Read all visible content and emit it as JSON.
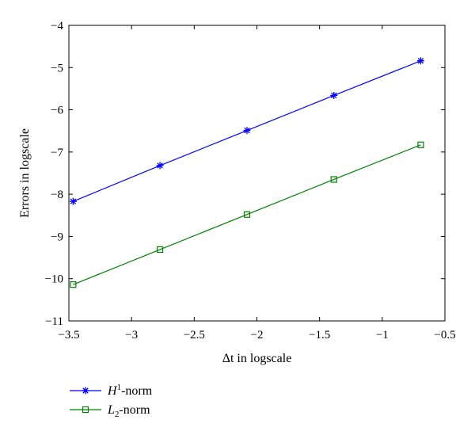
{
  "chart_data": {
    "type": "line",
    "title": "",
    "xlabel": "Δt in logscale",
    "ylabel": "Errors in logscale",
    "xlim": [
      -3.5,
      -0.5
    ],
    "ylim": [
      -11,
      -4
    ],
    "xticks": [
      -3.5,
      -3,
      -2.5,
      -2,
      -1.5,
      -1,
      -0.5
    ],
    "yticks": [
      -11,
      -10,
      -9,
      -8,
      -7,
      -6,
      -5,
      -4
    ],
    "xtick_labels": [
      "−3.5",
      "−3",
      "−2.5",
      "−2",
      "−1.5",
      "−1",
      "−0.5"
    ],
    "ytick_labels": [
      "−11",
      "−10",
      "−9",
      "−8",
      "−7",
      "−6",
      "−5",
      "−4"
    ],
    "grid": false,
    "legend_position": "below-left",
    "series": [
      {
        "name": "H1-norm",
        "name_base": "H",
        "name_sup": "1",
        "name_rest": "-norm",
        "color": "#0000ff",
        "marker": "asterisk",
        "x": [
          -3.466,
          -2.773,
          -2.079,
          -1.386,
          -0.693
        ],
        "y": [
          -8.17,
          -7.32,
          -6.49,
          -5.66,
          -4.84
        ]
      },
      {
        "name": "L2-norm",
        "name_base": "L",
        "name_sub": "2",
        "name_rest": "-norm",
        "color": "#008000",
        "marker": "square",
        "x": [
          -3.466,
          -2.773,
          -2.079,
          -1.386,
          -0.693
        ],
        "y": [
          -10.14,
          -9.31,
          -8.48,
          -7.65,
          -6.83
        ]
      }
    ]
  }
}
